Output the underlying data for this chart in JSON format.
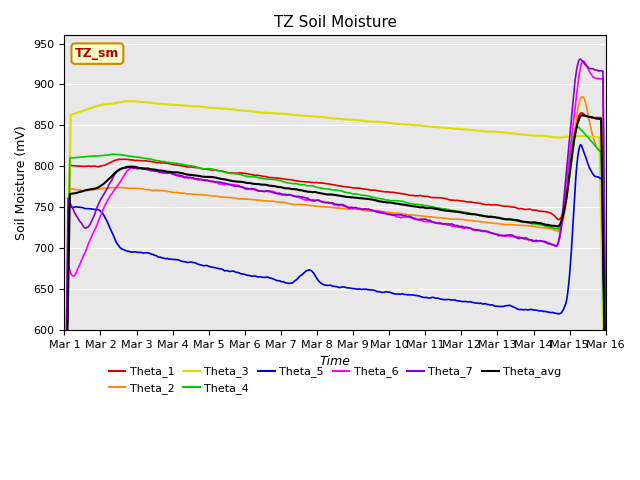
{
  "title": "TZ Soil Moisture",
  "xlabel": "Time",
  "ylabel": "Soil Moisture (mV)",
  "ylim": [
    600,
    960
  ],
  "yticks": [
    600,
    650,
    700,
    750,
    800,
    850,
    900,
    950
  ],
  "background_color": "#e8e8e8",
  "legend_label": "TZ_sm",
  "series": {
    "Theta_1": {
      "color": "#dd0000",
      "lw": 1.2
    },
    "Theta_2": {
      "color": "#ff8800",
      "lw": 1.2
    },
    "Theta_3": {
      "color": "#dddd00",
      "lw": 1.5
    },
    "Theta_4": {
      "color": "#00cc00",
      "lw": 1.2
    },
    "Theta_5": {
      "color": "#0000dd",
      "lw": 1.2
    },
    "Theta_6": {
      "color": "#ff00ff",
      "lw": 1.2
    },
    "Theta_7": {
      "color": "#8800cc",
      "lw": 1.2
    },
    "Theta_avg": {
      "color": "#000000",
      "lw": 1.5
    }
  }
}
